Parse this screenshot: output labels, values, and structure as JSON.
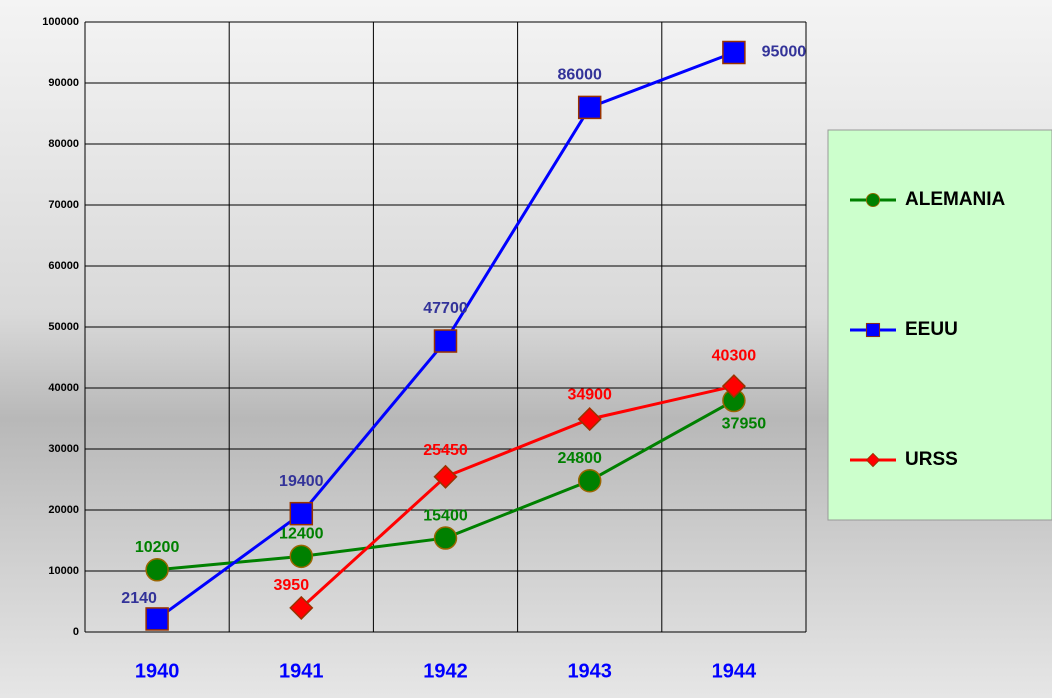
{
  "chart_data": {
    "type": "line",
    "categories": [
      "1940",
      "1941",
      "1942",
      "1943",
      "1944"
    ],
    "series": [
      {
        "name": "ALEMANIA",
        "color": "#008000",
        "label_color": "#008000",
        "marker": "circle",
        "values": [
          10200,
          12400,
          15400,
          24800,
          37950
        ]
      },
      {
        "name": "EEUU",
        "color": "#0000ff",
        "label_color": "#333399",
        "marker": "square",
        "values": [
          2140,
          19400,
          47700,
          86000,
          95000
        ]
      },
      {
        "name": "URSS",
        "color": "#ff0000",
        "label_color": "#ff0000",
        "marker": "diamond",
        "values": [
          null,
          3950,
          25450,
          34900,
          40300
        ]
      }
    ],
    "ylim": [
      0,
      100000
    ],
    "yticks": [
      0,
      10000,
      20000,
      30000,
      40000,
      50000,
      60000,
      70000,
      80000,
      90000,
      100000
    ],
    "grid": true,
    "legend": "right"
  }
}
